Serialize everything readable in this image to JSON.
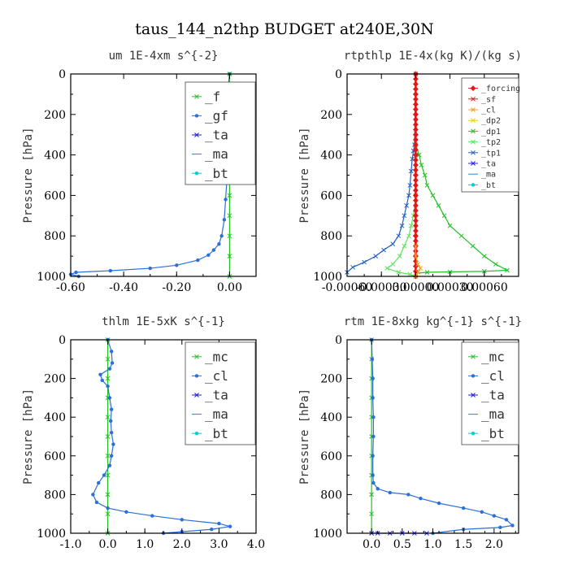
{
  "figure_title": "taus_144_n2thp  BUDGET at240E,30N",
  "colors": {
    "forcing": "#e01818",
    "sf": "#e01818",
    "cl_small": "#f0a020",
    "dp2": "#e8d000",
    "dp1": "#22c022",
    "tp2": "#60e060",
    "tp1": "#2060c0",
    "f": "#22c022",
    "mc": "#22c022",
    "gf": "#2a70d8",
    "cl": "#2a70d8",
    "ta": "#2020e0",
    "ma": "#2090c0",
    "bt": "#00d0d0"
  },
  "chart_data": [
    {
      "type": "line",
      "title": "um  1E-4xm s^{-2}",
      "ylabel": "Pressure [hPa]",
      "xlim": [
        -0.6,
        0.1
      ],
      "ylim": [
        1000,
        0
      ],
      "xticks": [
        -0.6,
        -0.4,
        -0.2,
        0.0
      ],
      "xtick_labels": [
        "-0.60",
        "-0.40",
        "-0.20",
        "0.00"
      ],
      "yticks": [
        0,
        200,
        400,
        600,
        800,
        1000
      ],
      "ytick_labels": [
        "0",
        "200",
        "400",
        "600",
        "800",
        "1000"
      ],
      "legend_position": "top-right",
      "legend_font": 16,
      "legend_entries": [
        "_f",
        "_gf",
        "_ta",
        "_ma",
        "_bt"
      ],
      "series": [
        {
          "name": "_f",
          "color_key": "f",
          "marker": "x",
          "x": [
            0,
            0,
            0,
            0,
            0,
            0,
            0,
            0,
            0,
            0,
            0
          ],
          "y": [
            0,
            100,
            200,
            300,
            400,
            500,
            600,
            700,
            800,
            900,
            1000
          ]
        },
        {
          "name": "_gf",
          "color_key": "gf",
          "marker": "dot",
          "x": [
            0.0,
            -0.005,
            0.0,
            0.005,
            0.0,
            -0.01,
            -0.015,
            -0.01,
            -0.015,
            -0.02,
            -0.03,
            -0.04,
            -0.06,
            -0.08,
            -0.12,
            -0.2,
            -0.3,
            -0.45,
            -0.58,
            -0.6,
            -0.57
          ],
          "y": [
            0,
            60,
            120,
            180,
            240,
            320,
            420,
            520,
            620,
            720,
            800,
            840,
            870,
            895,
            920,
            945,
            960,
            972,
            980,
            990,
            1000
          ]
        }
      ]
    },
    {
      "type": "line",
      "title": "rtpthlp  1E-4x(kg K)/(kg s)",
      "ylabel": "Pressure [hPa]",
      "xlim": [
        -0.0006,
        0.0009
      ],
      "ylim": [
        1000,
        0
      ],
      "xticks": [
        -0.0006,
        -0.0003,
        0.0,
        0.0003,
        0.0006
      ],
      "xtick_labels": [
        "-0.00060",
        "-0.00030",
        "0.00000",
        "0.00030",
        "0.00060"
      ],
      "yticks": [
        0,
        200,
        400,
        600,
        800,
        1000
      ],
      "ytick_labels": [
        "0",
        "200",
        "400",
        "600",
        "800",
        "1000"
      ],
      "legend_position": "top-right",
      "legend_font": 10,
      "legend_entries": [
        "_forcing",
        "_sf",
        "_cl",
        "_dp2",
        "_dp1",
        "_tp2",
        "_tp1",
        "_ta",
        "_ma",
        "_bt"
      ],
      "series": [
        {
          "name": "_tp1",
          "color_key": "tp1",
          "marker": "x",
          "x": [
            0.0,
            -1e-05,
            -2e-05,
            -3e-05,
            -4e-05,
            -5e-05,
            -6e-05,
            -8e-05,
            -0.0001,
            -0.00012,
            -0.00015,
            -0.0002,
            -0.00028,
            -0.00035,
            -0.00045,
            -0.00055,
            -0.0006
          ],
          "y": [
            0,
            350,
            380,
            420,
            480,
            550,
            600,
            650,
            700,
            750,
            800,
            840,
            870,
            900,
            930,
            955,
            980
          ]
        },
        {
          "name": "_dp1",
          "color_key": "dp1",
          "marker": "x",
          "x": [
            0.0,
            3e-05,
            5e-05,
            8e-05,
            0.0001,
            0.00015,
            0.0002,
            0.00025,
            0.0003,
            0.0004,
            0.0005,
            0.0006,
            0.0007,
            0.0008,
            0.0006,
            0.0003,
            0.0001,
            0.0
          ],
          "y": [
            350,
            400,
            450,
            500,
            550,
            600,
            650,
            700,
            750,
            800,
            850,
            900,
            940,
            970,
            975,
            978,
            980,
            985
          ]
        },
        {
          "name": "_tp2",
          "color_key": "tp2",
          "marker": "x",
          "x": [
            0.0,
            -2e-05,
            -4e-05,
            -6e-05,
            -0.0001,
            -0.00014,
            -0.0002,
            -0.00025,
            -0.00015,
            -5e-05,
            0.0
          ],
          "y": [
            600,
            700,
            750,
            800,
            850,
            900,
            940,
            960,
            980,
            990,
            1000
          ]
        },
        {
          "name": "_forcing",
          "color_key": "forcing",
          "marker": "diamond",
          "x": [
            0,
            0,
            0,
            0,
            0,
            0,
            0,
            0,
            0,
            0,
            0
          ],
          "y": [
            0,
            100,
            200,
            300,
            400,
            500,
            600,
            700,
            800,
            900,
            1000
          ]
        },
        {
          "name": "_cl",
          "color_key": "cl_small",
          "marker": "x",
          "x": [
            0.0,
            0.0,
            2e-05,
            4e-05,
            2e-05,
            0.0
          ],
          "y": [
            850,
            900,
            940,
            960,
            980,
            1000
          ]
        }
      ]
    },
    {
      "type": "line",
      "title": "thlm  1E-5xK s^{-1}",
      "ylabel": "Pressure [hPa]",
      "xlim": [
        -1.0,
        4.0
      ],
      "ylim": [
        1000,
        0
      ],
      "xticks": [
        -1.0,
        0.0,
        1.0,
        2.0,
        3.0,
        4.0
      ],
      "xtick_labels": [
        "-1.0",
        "0.0",
        "1.0",
        "2.0",
        "3.0",
        "4.0"
      ],
      "yticks": [
        0,
        200,
        400,
        600,
        800,
        1000
      ],
      "ytick_labels": [
        "0",
        "200",
        "400",
        "600",
        "800",
        "1000"
      ],
      "legend_position": "top-right",
      "legend_font": 16,
      "legend_entries": [
        "_mc",
        "_cl",
        "_ta",
        "_ma",
        "_bt"
      ],
      "series": [
        {
          "name": "_mc",
          "color_key": "mc",
          "marker": "x",
          "x": [
            0,
            0,
            0,
            0,
            0,
            0,
            0,
            0,
            0,
            0,
            0
          ],
          "y": [
            0,
            100,
            200,
            300,
            400,
            500,
            600,
            700,
            800,
            900,
            1000
          ]
        },
        {
          "name": "_cl",
          "color_key": "cl",
          "marker": "dot",
          "x": [
            0.0,
            0.1,
            0.12,
            0.05,
            -0.2,
            -0.15,
            0.0,
            0.05,
            0.1,
            0.08,
            0.1,
            0.15,
            0.1,
            0.05,
            -0.1,
            -0.25,
            -0.4,
            -0.3,
            0.0,
            0.5,
            1.2,
            2.0,
            3.0,
            3.3,
            2.8,
            2.0,
            1.5
          ],
          "y": [
            0,
            60,
            120,
            150,
            180,
            210,
            240,
            300,
            360,
            420,
            480,
            540,
            600,
            650,
            700,
            740,
            800,
            840,
            870,
            890,
            910,
            930,
            950,
            965,
            980,
            992,
            1000
          ]
        }
      ]
    },
    {
      "type": "line",
      "title": "rtm  1E-8xkg kg^{-1} s^{-1}",
      "ylabel": "Pressure [hPa]",
      "xlim": [
        -0.4,
        2.4
      ],
      "ylim": [
        1000,
        0
      ],
      "xticks": [
        0.0,
        0.5,
        1.0,
        1.5,
        2.0
      ],
      "xtick_labels": [
        "0.0",
        "0.5",
        "1.0",
        "1.5",
        "2.0"
      ],
      "yticks": [
        0,
        200,
        400,
        600,
        800,
        1000
      ],
      "ytick_labels": [
        "0",
        "200",
        "400",
        "600",
        "800",
        "1000"
      ],
      "legend_position": "top-right",
      "legend_font": 16,
      "legend_entries": [
        "_mc",
        "_cl",
        "_ta",
        "_ma",
        "_bt"
      ],
      "series": [
        {
          "name": "_mc",
          "color_key": "mc",
          "marker": "x",
          "x": [
            0,
            0,
            0,
            0,
            0,
            0,
            0,
            0,
            0,
            0,
            0
          ],
          "y": [
            0,
            100,
            200,
            300,
            400,
            500,
            600,
            700,
            800,
            900,
            1000
          ]
        },
        {
          "name": "_cl",
          "color_key": "cl",
          "marker": "dot",
          "x": [
            0.0,
            0.01,
            0.02,
            0.02,
            0.03,
            0.03,
            0.02,
            0.02,
            0.03,
            0.1,
            0.3,
            0.6,
            0.8,
            1.1,
            1.5,
            1.8,
            2.0,
            2.2,
            2.3,
            2.1,
            1.5,
            1.0
          ],
          "y": [
            0,
            100,
            200,
            300,
            400,
            500,
            600,
            700,
            740,
            770,
            790,
            800,
            820,
            845,
            870,
            890,
            910,
            930,
            960,
            970,
            980,
            1000
          ]
        },
        {
          "name": "_ta",
          "color_key": "ta",
          "marker": "x",
          "x": [
            0.0,
            0.1,
            0.3,
            0.5,
            0.7,
            0.9
          ],
          "y": [
            1000,
            1000,
            1000,
            1000,
            1000,
            1000
          ]
        }
      ]
    }
  ]
}
